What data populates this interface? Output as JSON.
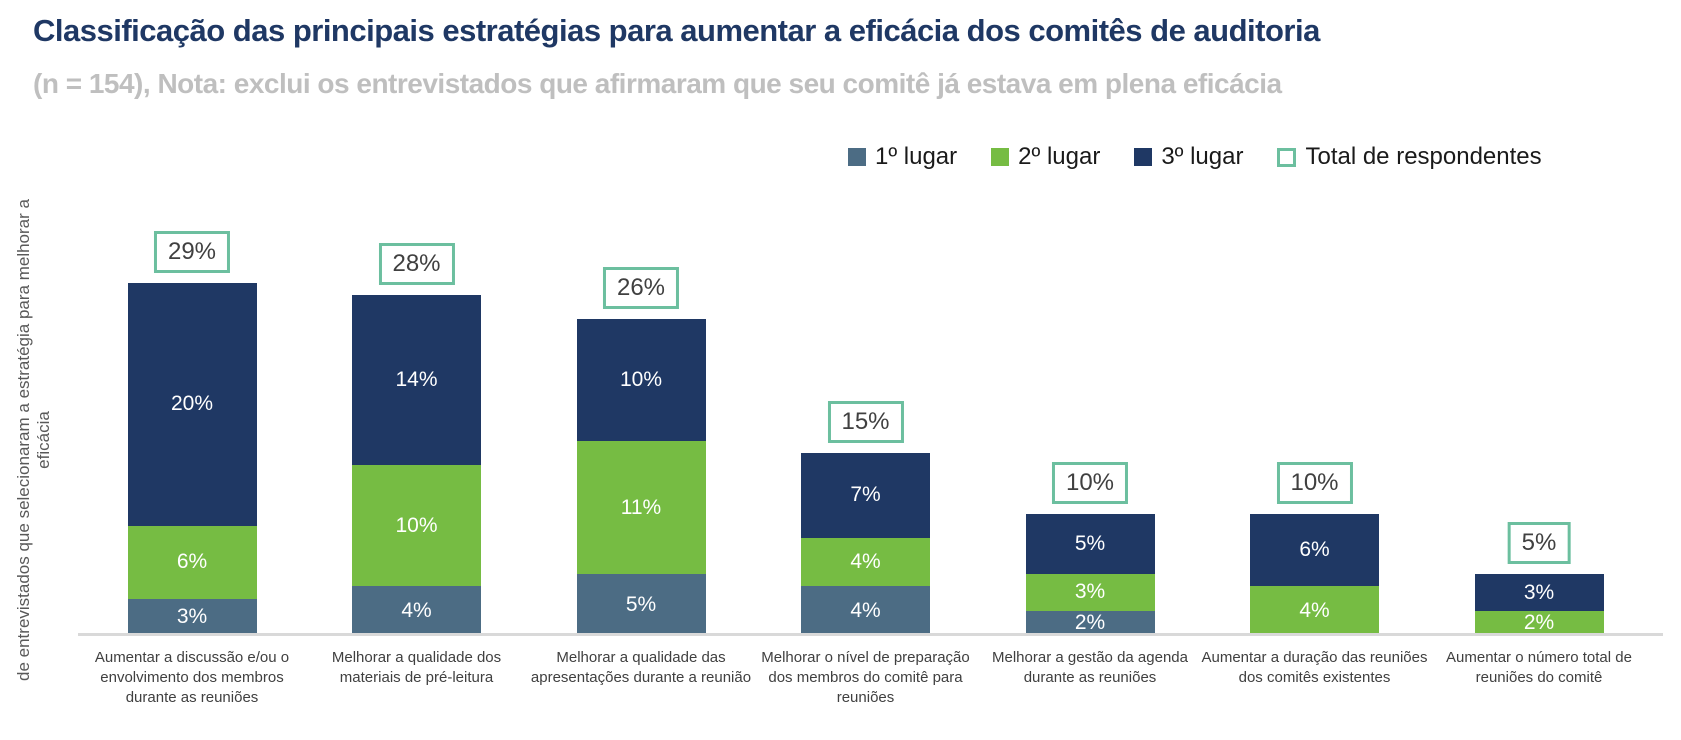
{
  "title": "Classificação das principais estratégias para aumentar a eficácia dos comitês de auditoria",
  "subtitle": "(n = 154), Nota: exclui os entrevistados que afirmaram que seu comitê já estava em plena eficácia",
  "colors": {
    "title": "#1F3864",
    "subtitle": "#BFBFBF",
    "first_place": "#4C6C84",
    "second_place": "#76BC43",
    "third_place": "#1F3864",
    "total_outline": "#6CBF9F",
    "axis_line": "#D9D9D9",
    "category_text": "#404040",
    "segment_text": "#FFFFFF"
  },
  "legend": [
    {
      "label": "1º lugar",
      "color": "#4C6C84",
      "type": "filled"
    },
    {
      "label": "2º lugar",
      "color": "#76BC43",
      "type": "filled"
    },
    {
      "label": "3º lugar",
      "color": "#1F3864",
      "type": "filled"
    },
    {
      "label": "Total de respondentes",
      "color": "#6CBF9F",
      "type": "outlined"
    }
  ],
  "chart_data": {
    "type": "bar",
    "stacked": true,
    "grid": false,
    "legend_position": "top-right",
    "value_suffix": "%",
    "ylim": [
      0,
      30
    ],
    "ylabel": {
      "line1": "de entrevistados que selecionaram a estratégia para melhorar a",
      "line2": "eficácia"
    },
    "categories": [
      "Aumentar a discussão e/ou o envolvimento dos membros durante as reuniões",
      "Melhorar a qualidade dos materiais de pré-leitura",
      "Melhorar a qualidade das apresentações durante a reunião",
      "Melhorar o nível de preparação dos membros do comitê para reuniões",
      "Melhorar a gestão da agenda durante as reuniões",
      "Aumentar a duração das reuniões dos comitês existentes",
      "Aumentar o número total de reuniões do comitê"
    ],
    "series": [
      {
        "name": "1º lugar",
        "color": "#4C6C84",
        "values": [
          3,
          4,
          5,
          4,
          2,
          0,
          0
        ]
      },
      {
        "name": "2º lugar",
        "color": "#76BC43",
        "values": [
          6,
          10,
          11,
          4,
          3,
          4,
          2
        ]
      },
      {
        "name": "3º lugar",
        "color": "#1F3864",
        "values": [
          20,
          14,
          10,
          7,
          5,
          6,
          3
        ]
      }
    ],
    "totals": [
      29,
      28,
      26,
      15,
      10,
      10,
      5
    ],
    "totals_label": "Total de respondentes"
  }
}
